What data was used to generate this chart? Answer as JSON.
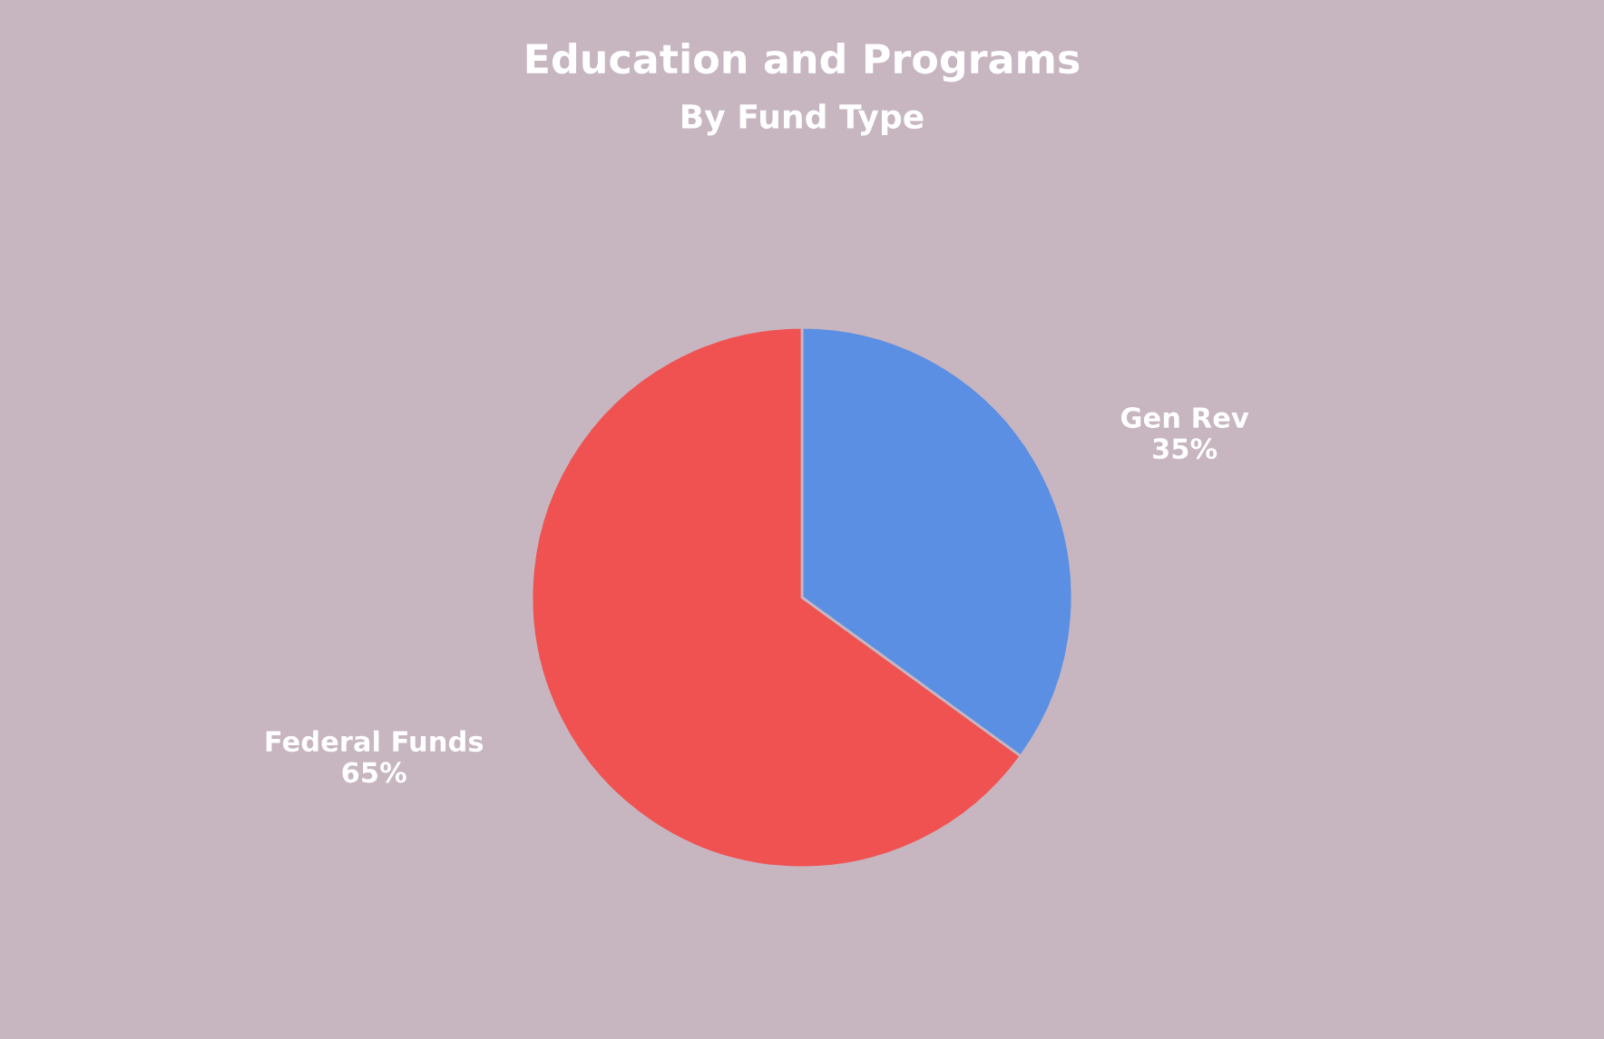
{
  "chart_data": {
    "type": "pie",
    "title": "Education and Programs",
    "subtitle": "By Fund Type",
    "categories": [
      "Gen Rev",
      "Federal Funds"
    ],
    "values": [
      35,
      65
    ],
    "value_labels": [
      "35%",
      "65%"
    ],
    "colors": [
      "#5b8fe3",
      "#f05252"
    ],
    "legend": false
  }
}
